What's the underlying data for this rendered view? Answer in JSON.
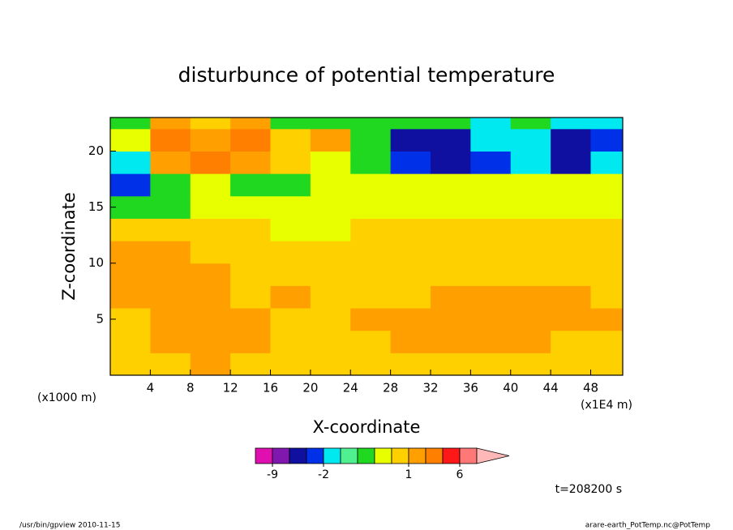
{
  "chart_data": {
    "type": "contour",
    "title": "disturbunce of potential temperature",
    "x_label": "X-coordinate",
    "y_label": "Z-coordinate",
    "x_unit": "(x1E4 m)",
    "y_unit": "(x1000 m)",
    "time_label": "t=208200 s",
    "footer_left": "/usr/bin/gpview  2010-11-15",
    "footer_right": "arare-earth_PotTemp.nc@PotTemp",
    "xlim": [
      0,
      51.2
    ],
    "ylim": [
      0,
      23
    ],
    "xticks": [
      4,
      8,
      12,
      16,
      20,
      24,
      28,
      32,
      36,
      40,
      44,
      48
    ],
    "yticks": [
      5,
      10,
      15,
      20
    ],
    "x": [
      2,
      6,
      10,
      14,
      18,
      22,
      26,
      30,
      34,
      38,
      42,
      46,
      50
    ],
    "y": [
      1,
      3,
      5,
      7,
      9,
      11,
      13,
      15,
      17,
      19,
      21,
      23
    ],
    "z": [
      [
        0.7,
        0.6,
        1.5,
        0.7,
        0.7,
        0.7,
        0.7,
        0.7,
        0.7,
        0.7,
        0.7,
        0.7,
        0.7
      ],
      [
        0.7,
        1.5,
        1.5,
        1.5,
        0.7,
        0.7,
        0.7,
        1.5,
        1.5,
        1.5,
        1.5,
        0.7,
        0.7
      ],
      [
        0.7,
        1.5,
        1.5,
        1.5,
        0.7,
        0.7,
        1.5,
        1.5,
        1.5,
        1.5,
        1.5,
        1.5,
        1.5
      ],
      [
        1.5,
        1.5,
        1.5,
        0.7,
        1.5,
        0.7,
        0.7,
        0.7,
        1.5,
        1.5,
        1.5,
        1.5,
        0.7
      ],
      [
        1.5,
        1.5,
        1.5,
        0.7,
        0.7,
        0.7,
        0.7,
        0.7,
        0.7,
        0.7,
        0.7,
        0.7,
        0.7
      ],
      [
        1.5,
        1.5,
        0.7,
        0.7,
        0.7,
        0.7,
        0.7,
        0.7,
        0.7,
        0.7,
        0.7,
        0.7,
        0.7
      ],
      [
        0.7,
        0.7,
        0.7,
        0.7,
        0.3,
        0.3,
        0.7,
        0.7,
        0.7,
        0.7,
        0.7,
        0.7,
        0.7
      ],
      [
        -0.3,
        -0.3,
        0.3,
        0.3,
        0.3,
        0.3,
        0.3,
        0.3,
        0.3,
        0.3,
        0.3,
        0.3,
        0.3
      ],
      [
        -2.5,
        -0.3,
        0.3,
        -0.3,
        -0.3,
        0.3,
        0.3,
        0.3,
        0.3,
        0.3,
        0.3,
        0.3,
        0.3
      ],
      [
        -1.5,
        1.5,
        3,
        1.5,
        0.7,
        0.3,
        -0.3,
        -2.5,
        -4,
        -2.5,
        -1.5,
        -4,
        -1.5
      ],
      [
        0.3,
        3,
        1.5,
        3,
        0.7,
        1.5,
        -0.3,
        -4,
        -4,
        -1.5,
        -1.5,
        -4,
        -2.5
      ],
      [
        -0.3,
        1.5,
        0.7,
        1.5,
        -0.3,
        -0.3,
        -0.3,
        -0.3,
        -0.3,
        -1.5,
        -0.3,
        -1.5,
        -1.5
      ]
    ],
    "levels": [
      -12,
      -9,
      -6,
      -3,
      -2,
      -1,
      -0.5,
      0,
      0.5,
      1,
      2,
      4,
      6,
      8
    ],
    "colors": [
      "#e010b0",
      "#8018b0",
      "#1010a0",
      "#0030e8",
      "#00e8f0",
      "#50f090",
      "#20d820",
      "#e8ff00",
      "#ffd000",
      "#ffa000",
      "#ff8000",
      "#ff1818",
      "#ff7878",
      "#ffb8b8"
    ],
    "colorbar_ticks": [
      -9,
      -2,
      1,
      6
    ]
  }
}
